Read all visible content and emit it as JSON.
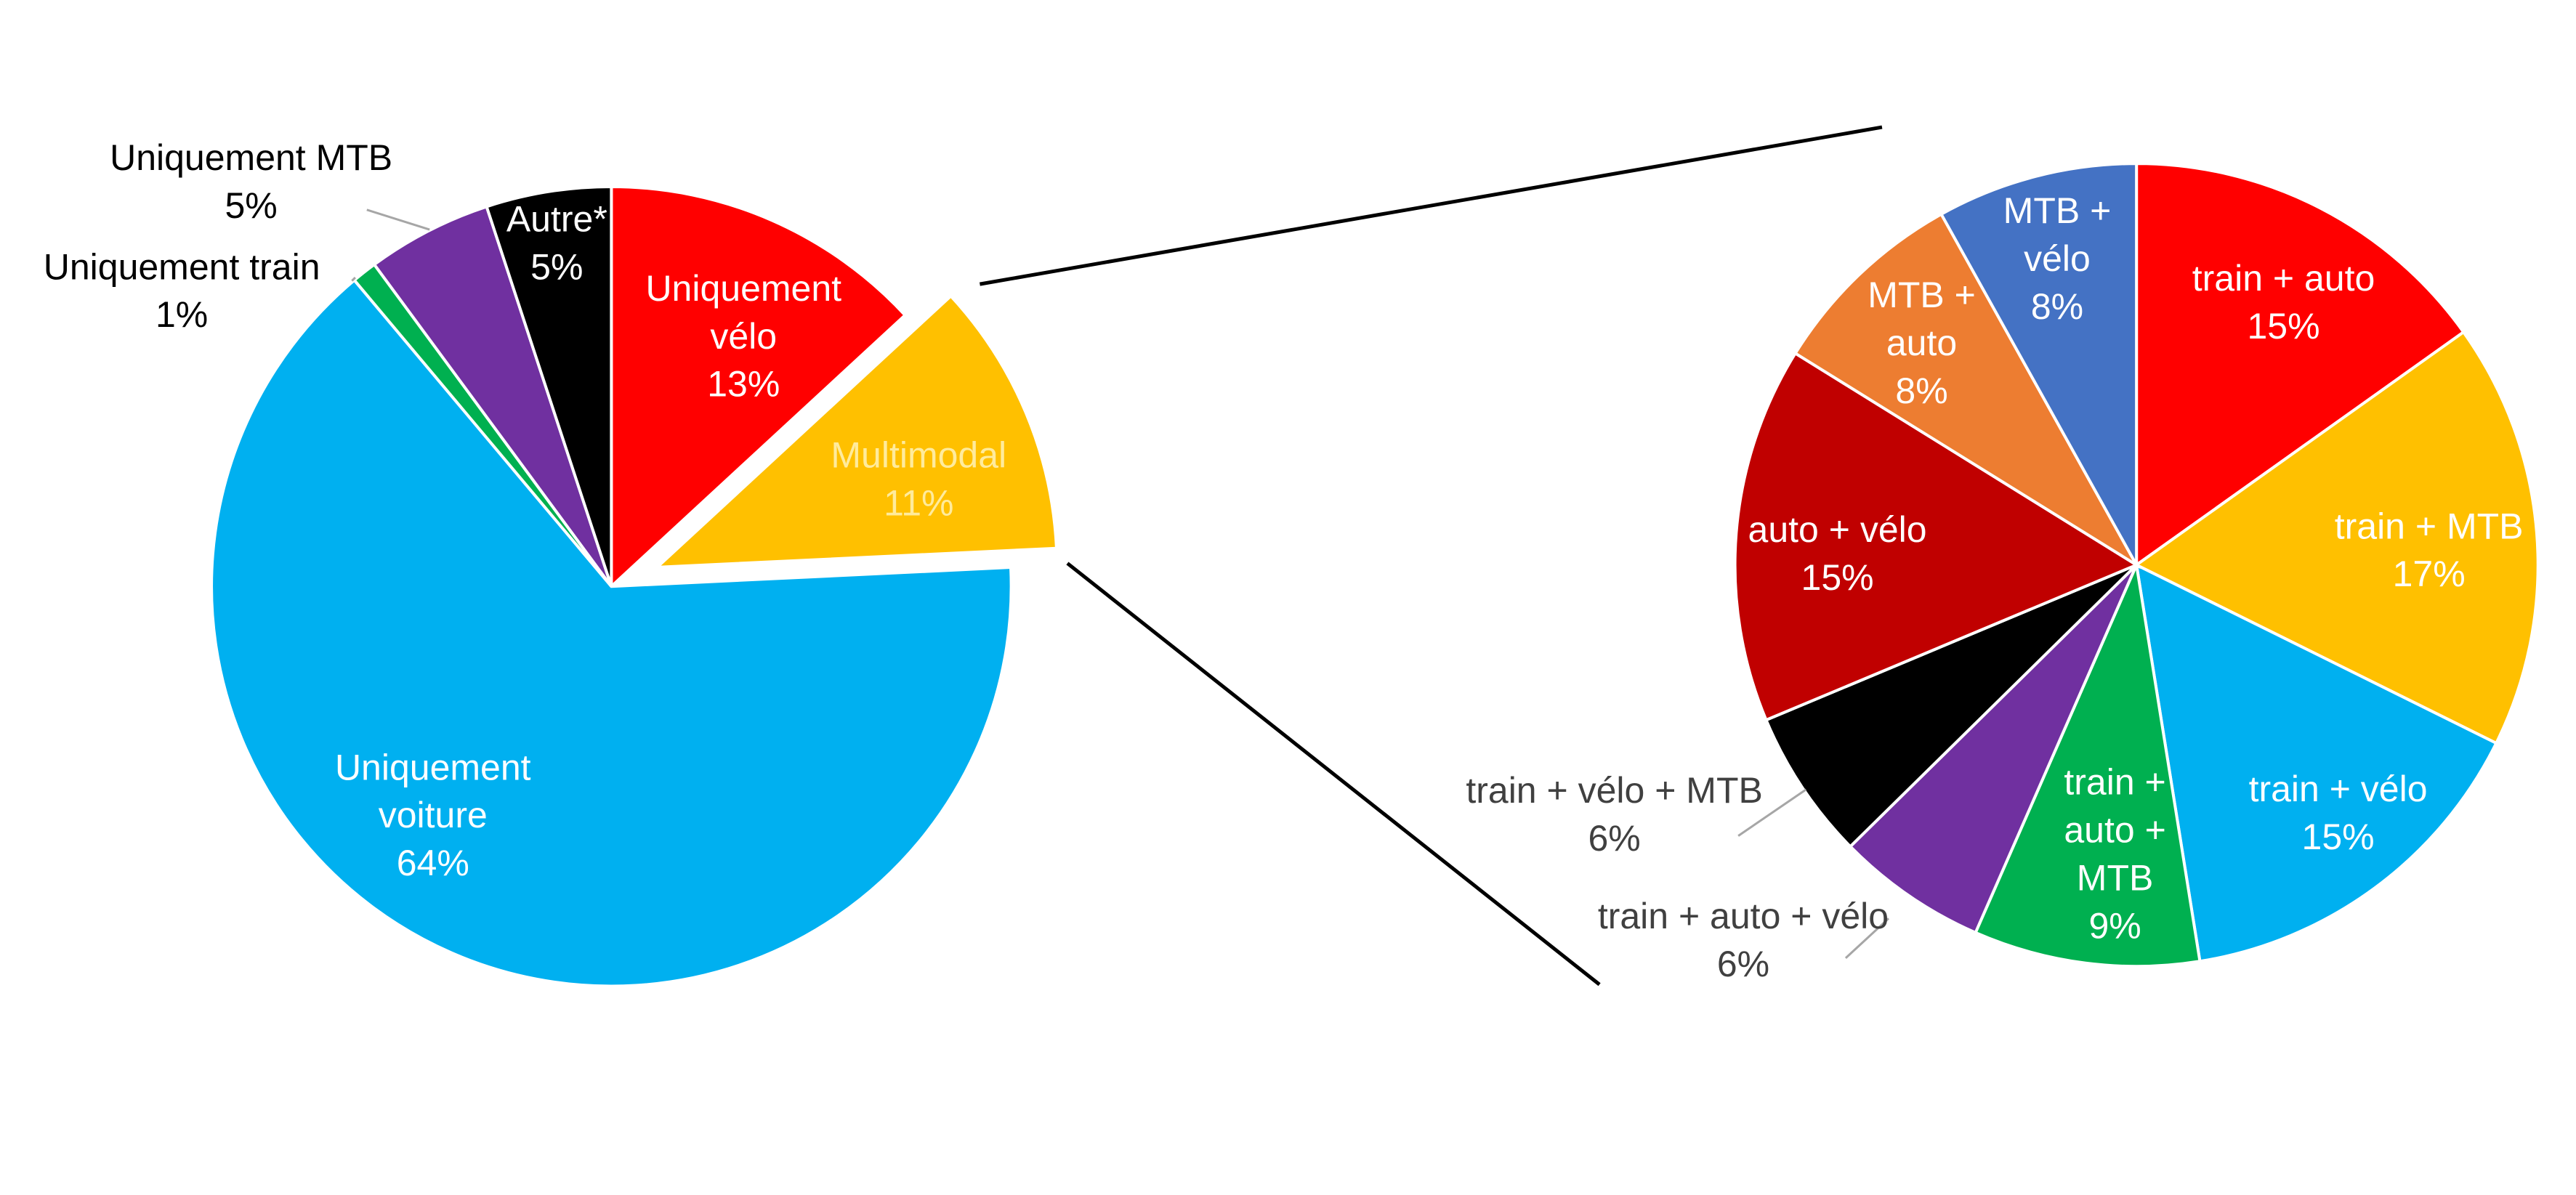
{
  "chart_data": [
    {
      "type": "pie",
      "title": "",
      "slices": [
        {
          "label": [
            "Uniquement",
            "vélo"
          ],
          "percent_label": "13%",
          "value": 13,
          "color": "#ff0000",
          "text_color": "#ffffff",
          "label_position": "inside"
        },
        {
          "label": [
            "Multimodal"
          ],
          "percent_label": "11%",
          "value": 11,
          "color": "#ffc000",
          "text_color": "#ffeb9c",
          "label_position": "inside",
          "exploded": true,
          "detailed_in_second_pie": true
        },
        {
          "label": [
            "Uniquement",
            "voiture"
          ],
          "percent_label": "64%",
          "value": 64,
          "color": "#00b0f0",
          "text_color": "#ffffff",
          "label_position": "inside"
        },
        {
          "label": [
            "Uniquement train"
          ],
          "percent_label": "1%",
          "value": 1,
          "color": "#00b050",
          "text_color": "#000000",
          "label_position": "outside"
        },
        {
          "label": [
            "Uniquement MTB"
          ],
          "percent_label": "5%",
          "value": 5,
          "color": "#7030a0",
          "text_color": "#000000",
          "label_position": "outside"
        },
        {
          "label": [
            "Autre*"
          ],
          "percent_label": "5%",
          "value": 5,
          "color": "#000000",
          "text_color": "#ffffff",
          "label_position": "inside"
        }
      ]
    },
    {
      "type": "pie",
      "title": "",
      "slices": [
        {
          "label": [
            "train + auto"
          ],
          "percent_label": "15%",
          "value": 15,
          "color": "#ff0000",
          "text_color": "#ffffff",
          "label_position": "inside"
        },
        {
          "label": [
            "train + MTB"
          ],
          "percent_label": "17%",
          "value": 17,
          "color": "#ffc000",
          "text_color": "#ffffff",
          "label_position": "inside"
        },
        {
          "label": [
            "train + vélo"
          ],
          "percent_label": "15%",
          "value": 15,
          "color": "#00b0f0",
          "text_color": "#ffffff",
          "label_position": "inside"
        },
        {
          "label": [
            "train +",
            "auto +",
            "MTB"
          ],
          "percent_label": "9%",
          "value": 9,
          "color": "#00b050",
          "text_color": "#ffffff",
          "label_position": "inside"
        },
        {
          "label": [
            "train + auto + vélo"
          ],
          "percent_label": "6%",
          "value": 6,
          "color": "#7030a0",
          "text_color": "#404040",
          "label_position": "outside"
        },
        {
          "label": [
            "train + vélo + MTB"
          ],
          "percent_label": "6%",
          "value": 6,
          "color": "#000000",
          "text_color": "#404040",
          "label_position": "outside"
        },
        {
          "label": [
            "auto + vélo"
          ],
          "percent_label": "15%",
          "value": 15,
          "color": "#c00000",
          "text_color": "#ffffff",
          "label_position": "inside"
        },
        {
          "label": [
            "MTB +",
            "auto"
          ],
          "percent_label": "8%",
          "value": 8,
          "color": "#ed7d31",
          "text_color": "#ffffff",
          "label_position": "inside"
        },
        {
          "label": [
            "MTB +",
            "vélo"
          ],
          "percent_label": "8%",
          "value": 8,
          "color": "#4472c4",
          "text_color": "#ffffff",
          "label_position": "inside"
        }
      ]
    }
  ]
}
